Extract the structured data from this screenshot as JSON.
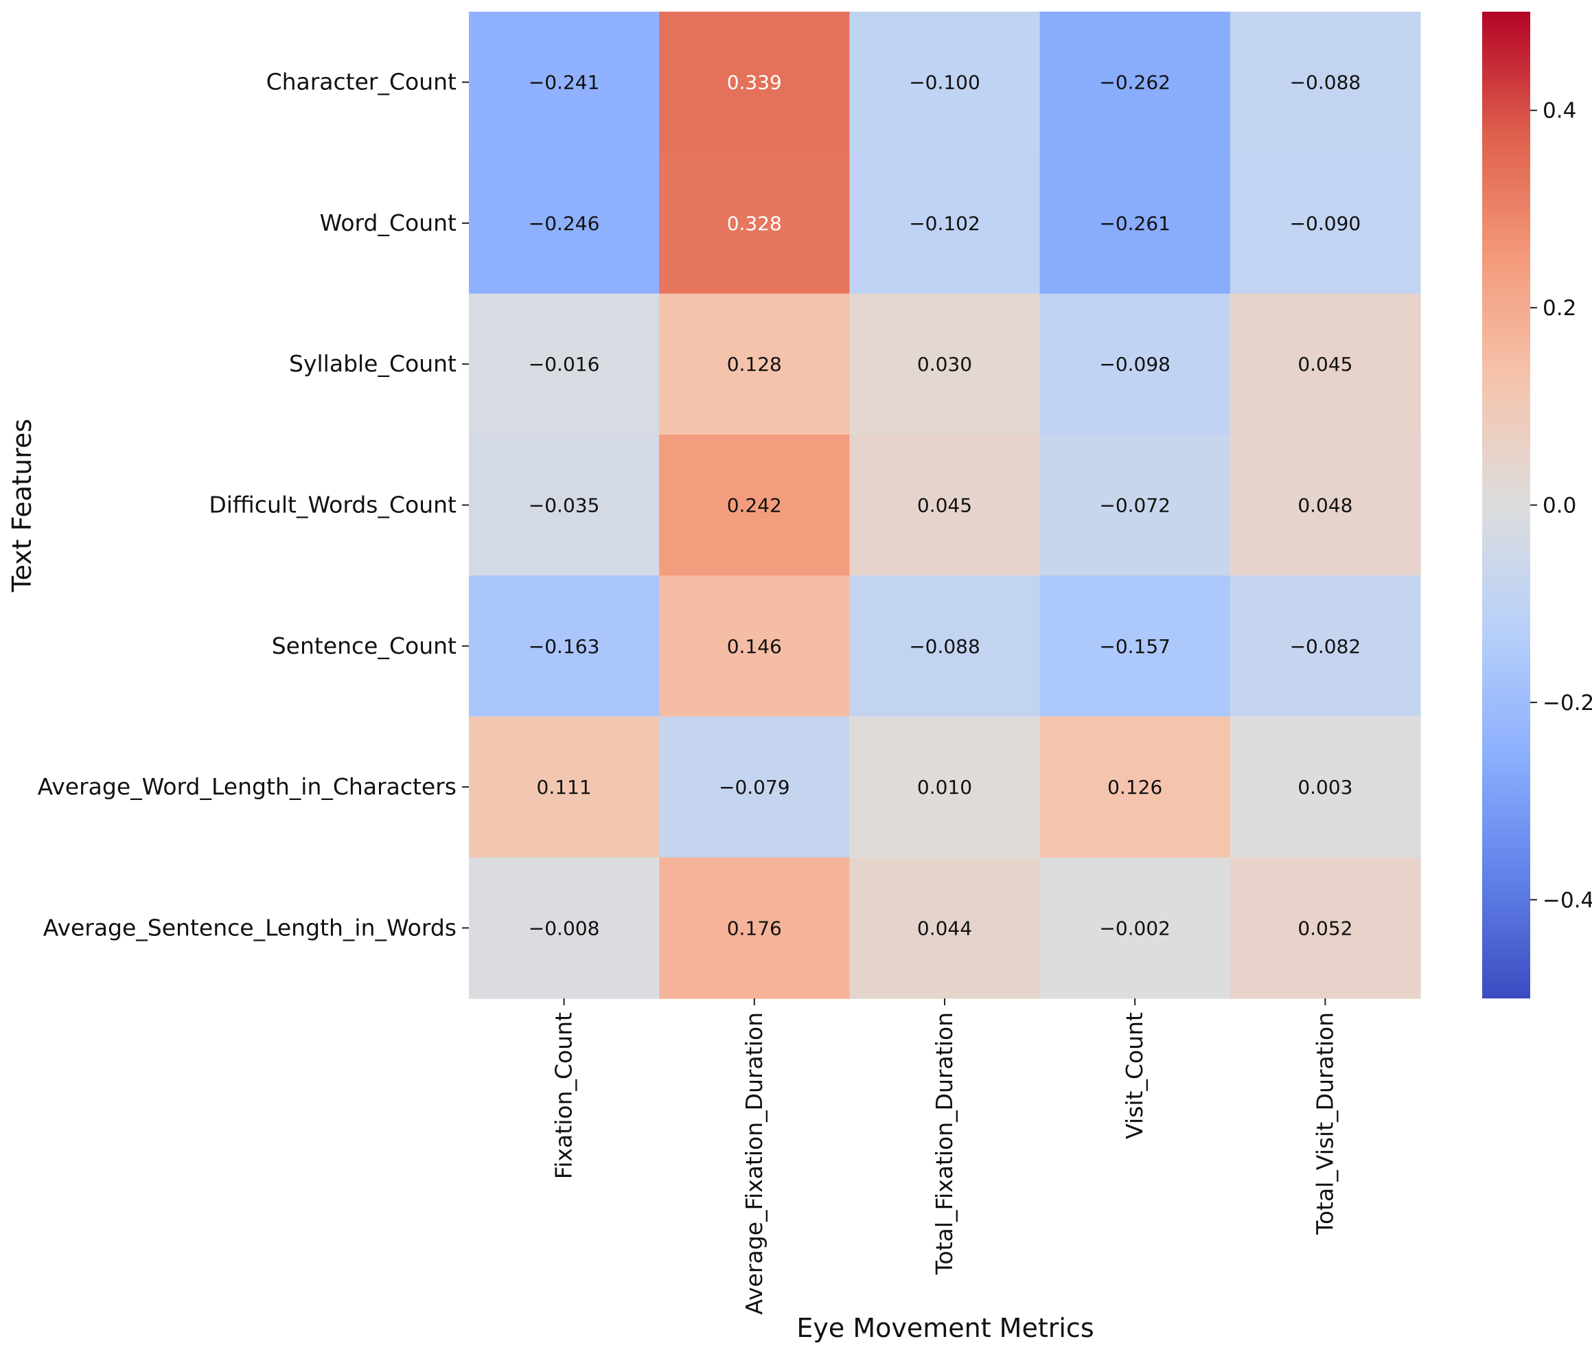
{
  "chart_data": {
    "type": "heatmap",
    "title": "",
    "xlabel": "Eye Movement Metrics",
    "ylabel": "Text Features",
    "columns": [
      "Fixation_Count",
      "Average_Fixation_Duration",
      "Total_Fixation_Duration",
      "Visit_Count",
      "Total_Visit_Duration"
    ],
    "rows": [
      "Character_Count",
      "Word_Count",
      "Syllable_Count",
      "Difficult_Words_Count",
      "Sentence_Count",
      "Average_Word_Length_in_Characters",
      "Average_Sentence_Length_in_Words"
    ],
    "values": [
      [
        -0.241,
        0.339,
        -0.1,
        -0.262,
        -0.088
      ],
      [
        -0.246,
        0.328,
        -0.102,
        -0.261,
        -0.09
      ],
      [
        -0.016,
        0.128,
        0.03,
        -0.098,
        0.045
      ],
      [
        -0.035,
        0.242,
        0.045,
        -0.072,
        0.048
      ],
      [
        -0.163,
        0.146,
        -0.088,
        -0.157,
        -0.082
      ],
      [
        0.111,
        -0.079,
        0.01,
        0.126,
        0.003
      ],
      [
        -0.008,
        0.176,
        0.044,
        -0.002,
        0.052
      ]
    ],
    "labels": [
      [
        "−0.241",
        "0.339",
        "−0.100",
        "−0.262",
        "−0.088"
      ],
      [
        "−0.246",
        "0.328",
        "−0.102",
        "−0.261",
        "−0.090"
      ],
      [
        "−0.016",
        "0.128",
        "0.030",
        "−0.098",
        "0.045"
      ],
      [
        "−0.035",
        "0.242",
        "0.045",
        "−0.072",
        "0.048"
      ],
      [
        "−0.163",
        "0.146",
        "−0.088",
        "−0.157",
        "−0.082"
      ],
      [
        "0.111",
        "−0.079",
        "0.010",
        "0.126",
        "0.003"
      ],
      [
        "−0.008",
        "0.176",
        "0.044",
        "−0.002",
        "0.052"
      ]
    ],
    "colormap": "coolwarm",
    "vmin": -0.5,
    "vmax": 0.5,
    "colorbar": {
      "ticks": [
        0.4,
        0.2,
        0.0,
        -0.2,
        -0.4
      ],
      "tick_labels": [
        "0.4",
        "0.2",
        "0.0",
        "−0.2",
        "−0.4"
      ]
    },
    "colors": {
      "low": "#3b4cc0",
      "mid": "#dddddd",
      "high": "#b40426"
    }
  }
}
